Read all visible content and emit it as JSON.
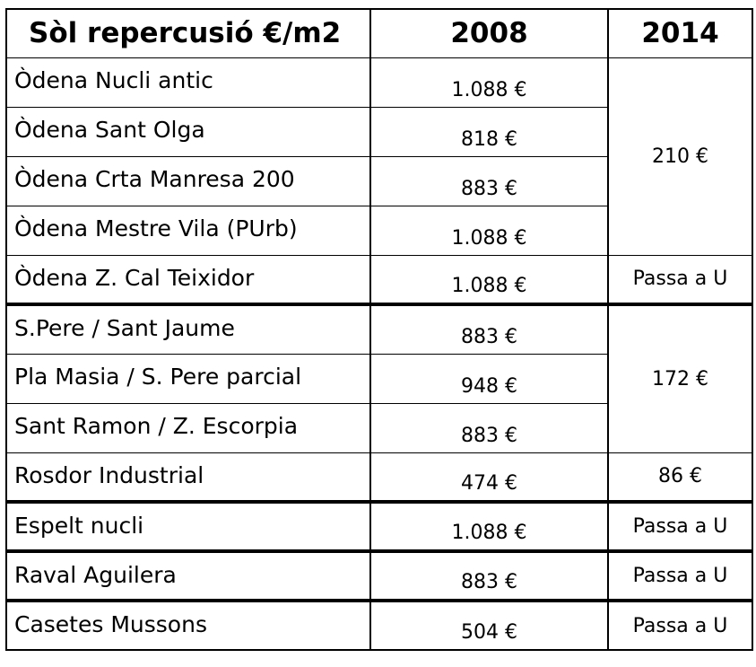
{
  "header": {
    "col_name": "Sòl repercusió €/m2",
    "col_2008": "2008",
    "col_2014": "2014"
  },
  "rows": [
    {
      "name": "Òdena Nucli antic",
      "v2008": "1.088 €"
    },
    {
      "name": "Òdena Sant Olga",
      "v2008": "818 €"
    },
    {
      "name": "Òdena Crta Manresa 200",
      "v2008": "883 €"
    },
    {
      "name": "Òdena Mestre Vila (PUrb)",
      "v2008": "1.088 €"
    },
    {
      "name": "Òdena Z. Cal Teixidor",
      "v2008": "1.088 €"
    },
    {
      "name": "S.Pere / Sant Jaume",
      "v2008": "883 €"
    },
    {
      "name": "Pla Masia / S. Pere parcial",
      "v2008": "948 €"
    },
    {
      "name": "Sant Ramon / Z. Escorpia",
      "v2008": "883 €"
    },
    {
      "name": "Rosdor Industrial",
      "v2008": "474 €"
    },
    {
      "name": "Espelt nucli",
      "v2008": "1.088 €"
    },
    {
      "name": "Raval Aguilera",
      "v2008": "883 €"
    },
    {
      "name": "Casetes Mussons",
      "v2008": "504 €"
    }
  ],
  "values_2014": {
    "group_odena": "210 €",
    "cal_teixidor": "Passa a U",
    "group_spere": "172 €",
    "rosdor": "86 €",
    "espelt": "Passa a U",
    "raval": "Passa a U",
    "casetes": "Passa a U"
  }
}
